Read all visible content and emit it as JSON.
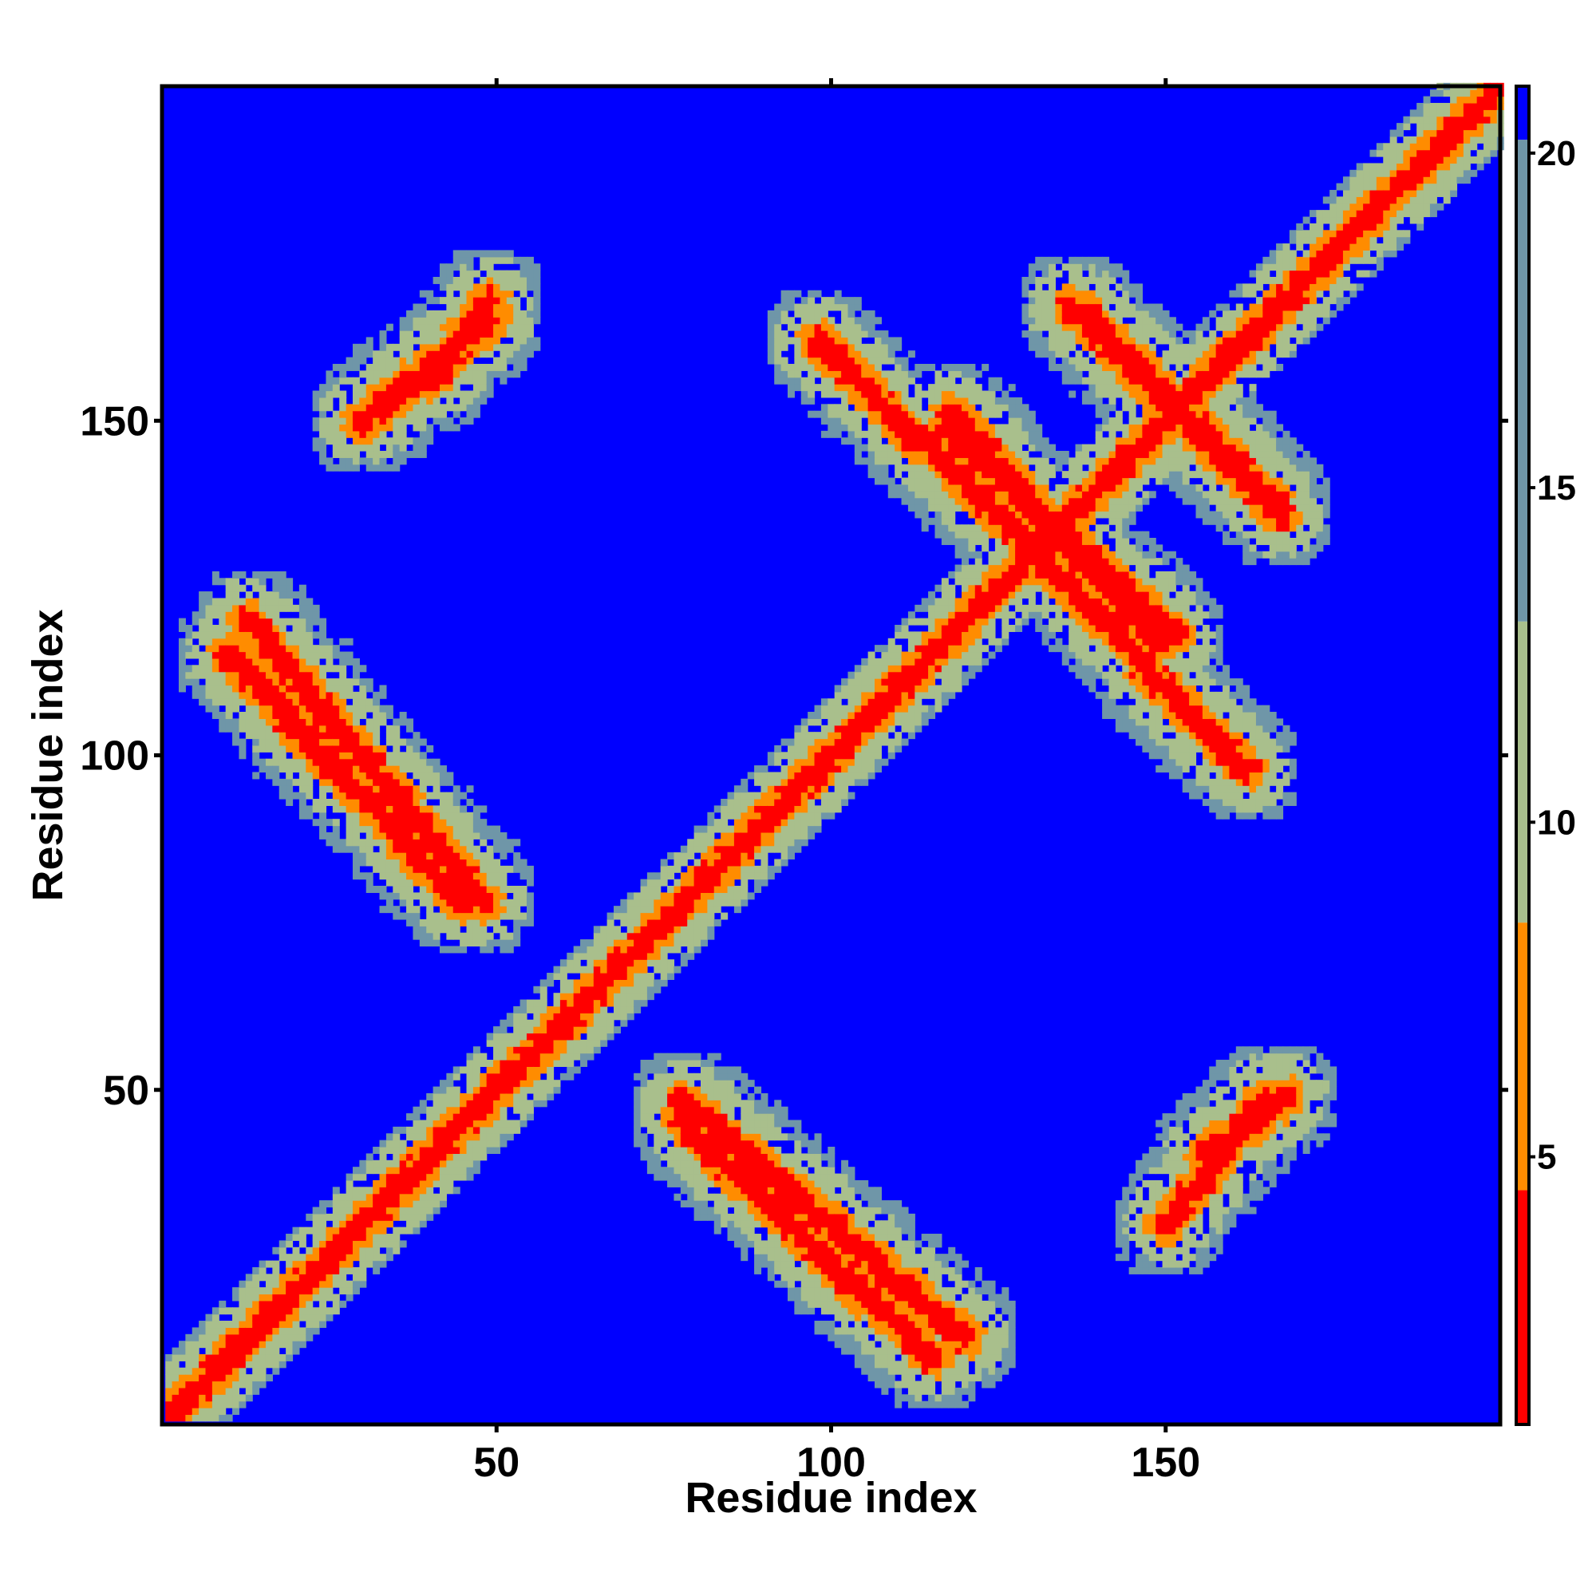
{
  "chart_data": {
    "type": "heatmap",
    "title": "",
    "xlabel": "Residue index",
    "ylabel": "Residue index",
    "n_residues": 200,
    "xlim": [
      1,
      200
    ],
    "ylim": [
      1,
      200
    ],
    "x_ticks": [
      50,
      100,
      150
    ],
    "y_ticks": [
      50,
      100,
      150
    ],
    "colorbar": {
      "ticks": [
        5,
        10,
        15,
        20
      ],
      "range": [
        1,
        21
      ],
      "colors": [
        "#ff0000",
        "#ff8c00",
        "#a9bf8c",
        "#6f96a8",
        "#0000ff"
      ]
    },
    "background_color": "#0000ff",
    "diagonal": {
      "from": 1,
      "to": 200
    },
    "bands": [
      {
        "a": [
          98,
          130
        ],
        "b": [
          131,
          162
        ],
        "kind": "antiparallel"
      },
      {
        "a": [
          117,
          151
        ],
        "b": [
          118,
          149
        ],
        "kind": "antiparallel"
      },
      {
        "a": [
          136,
          166
        ],
        "b": [
          138,
          167
        ],
        "kind": "antiparallel"
      },
      {
        "a": [
          156,
          168
        ],
        "b": [
          40,
          49
        ],
        "kind": "parallel"
      },
      {
        "a": [
          30,
          49
        ],
        "b": [
          150,
          165
        ],
        "kind": "parallel"
      },
      {
        "a": [
          13,
          48
        ],
        "b": [
          78,
          120
        ],
        "kind": "antiparallel"
      },
      {
        "a": [
          78,
          115
        ],
        "b": [
          10,
          45
        ],
        "kind": "antiparallel"
      }
    ]
  }
}
